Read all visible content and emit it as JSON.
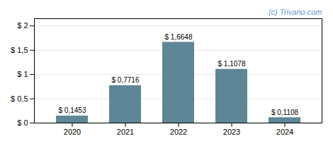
{
  "chart_data": {
    "type": "bar",
    "categories": [
      "2020",
      "2021",
      "2022",
      "2023",
      "2024"
    ],
    "values": [
      0.1453,
      0.7716,
      1.6648,
      1.1078,
      0.1108
    ],
    "value_labels": [
      "$ 0,1453",
      "$ 0,7716",
      "$ 1,6648",
      "$ 1,1078",
      "$ 0,1108"
    ],
    "data_labels": true,
    "color": "#5f8696",
    "ylim": [
      0,
      2.15
    ],
    "yticks": [
      {
        "value": 0,
        "label": "$ 0"
      },
      {
        "value": 0.5,
        "label": "$ 0,5"
      },
      {
        "value": 1.0,
        "label": "$ 1"
      },
      {
        "value": 1.5,
        "label": "$ 1,5"
      },
      {
        "value": 2.0,
        "label": "$ 2"
      }
    ],
    "grid": true,
    "annotations": [
      {
        "text": "(c) Trivano.com",
        "color": "#6699cc"
      }
    ]
  }
}
